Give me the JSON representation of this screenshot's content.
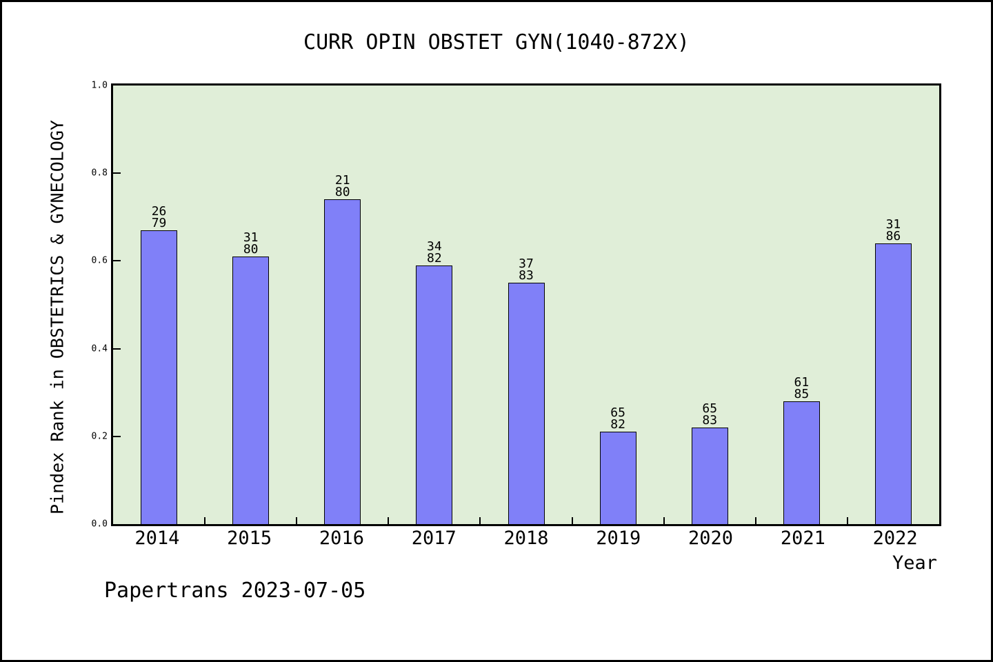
{
  "footer": "Papertrans 2023-07-05",
  "chart_data": {
    "type": "bar",
    "title": "CURR OPIN OBSTET GYN(1040-872X)",
    "xlabel": "Year",
    "ylabel": "Pindex Rank in OBSTETRICS & GYNECOLOGY",
    "categories": [
      "2014",
      "2015",
      "2016",
      "2017",
      "2018",
      "2019",
      "2020",
      "2021",
      "2022"
    ],
    "values": [
      0.67,
      0.61,
      0.74,
      0.59,
      0.55,
      0.21,
      0.22,
      0.28,
      0.64
    ],
    "bar_labels": [
      [
        "26",
        "79"
      ],
      [
        "31",
        "80"
      ],
      [
        "21",
        "80"
      ],
      [
        "34",
        "82"
      ],
      [
        "37",
        "83"
      ],
      [
        "65",
        "82"
      ],
      [
        "65",
        "83"
      ],
      [
        "61",
        "85"
      ],
      [
        "31",
        "86"
      ]
    ],
    "ylim": [
      0.0,
      1.0
    ],
    "ytick_values": [
      0.0,
      0.2,
      0.4,
      0.6,
      0.8,
      1.0
    ],
    "ytick_labels": [
      "0.0",
      "0.2",
      "0.4",
      "0.6",
      "0.8",
      "1.0"
    ],
    "grid": false,
    "legend_position": "none",
    "colors": {
      "bar_fill": "#8080f8",
      "bar_stroke": "#000000",
      "plot_bg": "#e0eed8",
      "page_bg": "#ffffff",
      "text": "#000000"
    }
  }
}
